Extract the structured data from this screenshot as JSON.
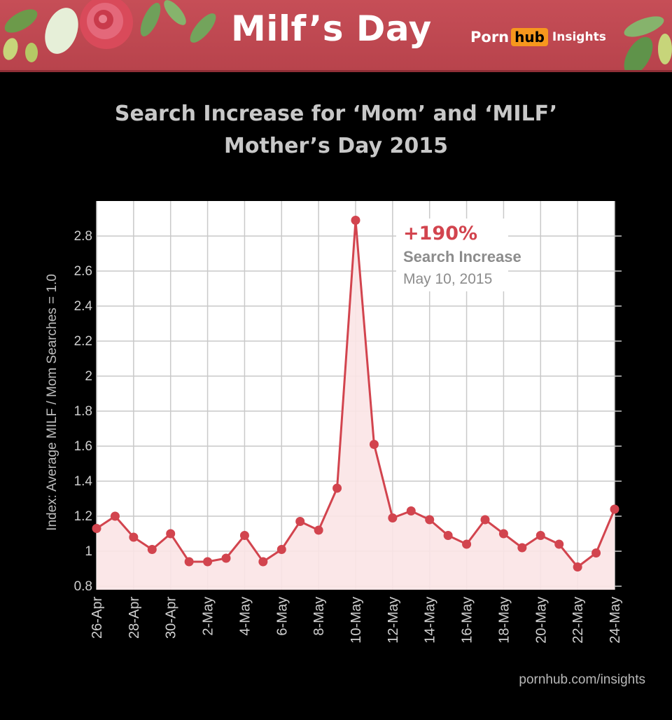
{
  "banner": {
    "title": "Milf’s Day",
    "logo_porn": "Porn",
    "logo_hub": "hub",
    "logo_insights": "Insights"
  },
  "footer": {
    "url": "pornhub.com/insights"
  },
  "colors": {
    "banner": "#c64e57",
    "series": "#d2444e",
    "fill": "#fbe4e6",
    "logo_hub": "#f7971d"
  },
  "chart_data": {
    "type": "line",
    "title": "Search Increase for ‘Mom’ and ‘MILF’",
    "subtitle": "Mother’s Day 2015",
    "ylabel": "Index: Average MILF / Mom Searches = 1.0",
    "xlabel": "",
    "ylim": [
      0.78,
      3.0
    ],
    "yticks": [
      0.8,
      1,
      1.2,
      1.4,
      1.6,
      1.8,
      2,
      2.2,
      2.4,
      2.6,
      2.8
    ],
    "ytick_labels": [
      "0.8",
      "1",
      "1.2",
      "1.4",
      "1.6",
      "1.8",
      "2",
      "2.2",
      "2.4",
      "2.6",
      "2.8"
    ],
    "x": [
      "26-Apr",
      "27-Apr",
      "28-Apr",
      "29-Apr",
      "30-Apr",
      "1-May",
      "2-May",
      "3-May",
      "4-May",
      "5-May",
      "6-May",
      "7-May",
      "8-May",
      "9-May",
      "10-May",
      "11-May",
      "12-May",
      "13-May",
      "14-May",
      "15-May",
      "16-May",
      "17-May",
      "18-May",
      "19-May",
      "20-May",
      "21-May",
      "22-May",
      "23-May",
      "24-May"
    ],
    "xtick_labels": [
      "26-Apr",
      "28-Apr",
      "30-Apr",
      "2-May",
      "4-May",
      "6-May",
      "8-May",
      "10-May",
      "12-May",
      "14-May",
      "16-May",
      "18-May",
      "20-May",
      "22-May",
      "24-May"
    ],
    "values": [
      1.13,
      1.2,
      1.08,
      1.01,
      1.1,
      0.94,
      0.94,
      0.96,
      1.09,
      0.94,
      1.01,
      1.17,
      1.12,
      1.36,
      2.89,
      1.61,
      1.19,
      1.23,
      1.18,
      1.09,
      1.04,
      1.18,
      1.1,
      1.02,
      1.09,
      1.04,
      0.91,
      0.99,
      1.24
    ],
    "grid": true,
    "annotation": {
      "x": "10-May",
      "headline": "+190%",
      "line2": "Search Increase",
      "line3": "May 10, 2015"
    }
  }
}
